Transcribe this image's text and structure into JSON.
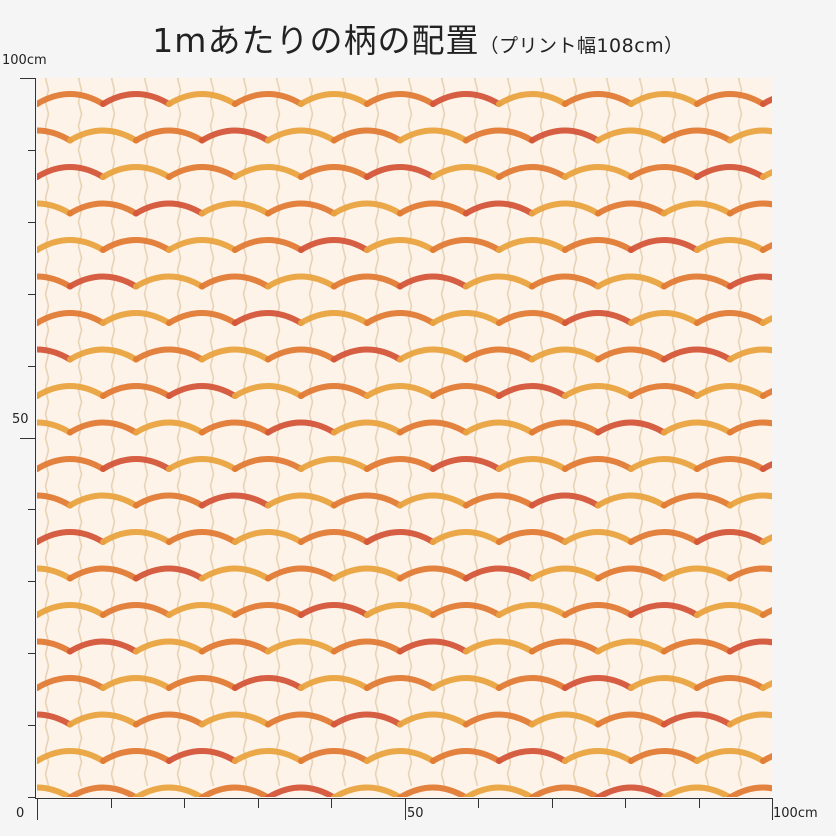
{
  "title": {
    "main": "1mあたりの柄の配置",
    "sub": "（プリント幅108cm）"
  },
  "scale": {
    "y_top": "100cm",
    "y_mid": "50",
    "origin": "0",
    "x_mid": "50",
    "x_end": "100cm"
  },
  "pattern": {
    "name": "scallop-stripes",
    "colors": {
      "background": "#fdf3e8",
      "orange": "#e9a340",
      "deep_orange": "#e27a35",
      "red": "#d4553a",
      "thread": "#e8d3b6"
    }
  }
}
